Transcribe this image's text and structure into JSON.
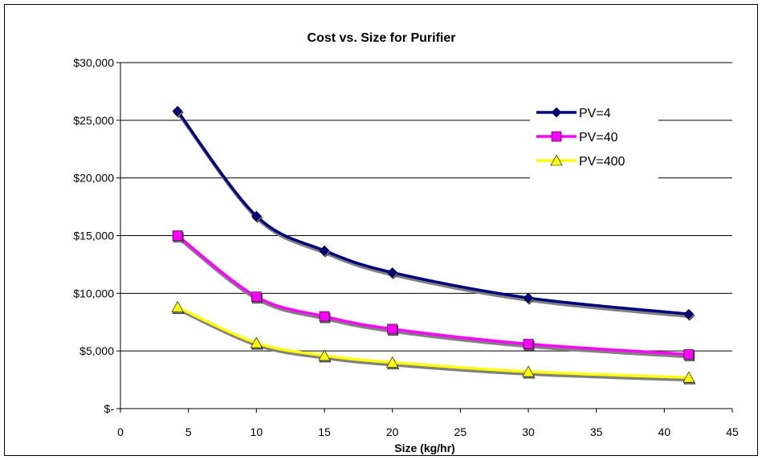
{
  "chart_data": {
    "type": "line",
    "title": "Cost vs. Size for Purifier",
    "xlabel": "Size (kg/hr)",
    "ylabel": "",
    "xlim": [
      0,
      45
    ],
    "ylim": [
      0,
      30000
    ],
    "xticks": [
      0,
      5,
      10,
      15,
      20,
      25,
      30,
      35,
      40,
      45
    ],
    "yticks": [
      0,
      5000,
      10000,
      15000,
      20000,
      25000,
      30000
    ],
    "ytick_labels": [
      "$-",
      "$5,000",
      "$10,000",
      "$15,000",
      "$20,000",
      "$25,000",
      "$30,000"
    ],
    "grid": "horizontal",
    "legend": "top-right",
    "series": [
      {
        "name": "PV=4",
        "color": "#000080",
        "marker": "diamond",
        "x": [
          4.2,
          10,
          15,
          20,
          30,
          41.8
        ],
        "values": [
          25800,
          16700,
          13700,
          11800,
          9600,
          8200
        ]
      },
      {
        "name": "PV=40",
        "color": "#ff00ff",
        "marker": "square",
        "x": [
          4.2,
          10,
          15,
          20,
          30,
          41.8
        ],
        "values": [
          15000,
          9700,
          8000,
          6900,
          5600,
          4700
        ]
      },
      {
        "name": "PV=400",
        "color": "#ffff00",
        "marker": "triangle",
        "x": [
          4.2,
          10,
          15,
          20,
          30,
          41.8
        ],
        "values": [
          8800,
          5700,
          4600,
          4000,
          3200,
          2700
        ]
      }
    ]
  }
}
